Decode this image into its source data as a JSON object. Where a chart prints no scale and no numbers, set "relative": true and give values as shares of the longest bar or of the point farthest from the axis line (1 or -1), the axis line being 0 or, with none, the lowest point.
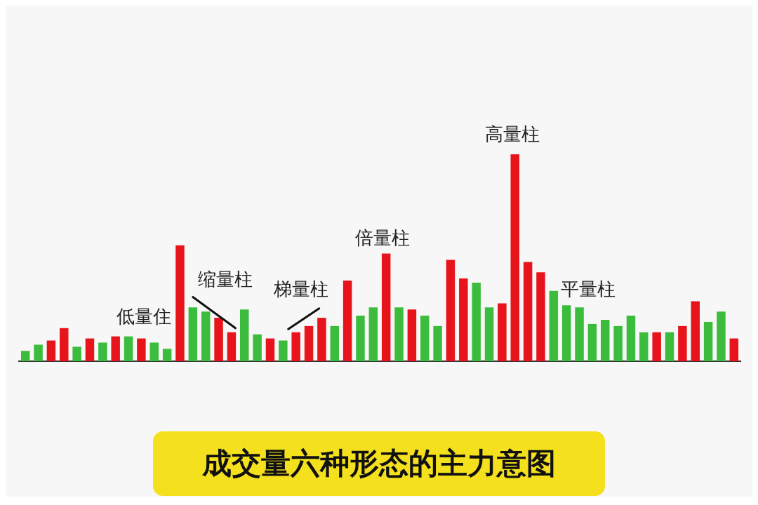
{
  "chart_data": {
    "type": "bar",
    "relative": true,
    "title": "成交量六种形态的主力意图",
    "categories": [
      null,
      null,
      null,
      null,
      null,
      null,
      null,
      null,
      null,
      null,
      null,
      null,
      null,
      null,
      null,
      null,
      null,
      null,
      null,
      null,
      null,
      null,
      null,
      null,
      null,
      null,
      null,
      null,
      null,
      null,
      null,
      null,
      null,
      null,
      null,
      null,
      null,
      null,
      null,
      null,
      null,
      null,
      null,
      null,
      null,
      null,
      null,
      null,
      null,
      null,
      null,
      null,
      null,
      null,
      null,
      null
    ],
    "values": [
      0.05,
      0.08,
      0.1,
      0.16,
      0.07,
      0.11,
      0.09,
      0.12,
      0.12,
      0.11,
      0.09,
      0.06,
      0.56,
      0.26,
      0.24,
      0.21,
      0.14,
      0.25,
      0.13,
      0.11,
      0.1,
      0.14,
      0.17,
      0.21,
      0.17,
      0.39,
      0.22,
      0.26,
      0.52,
      0.26,
      0.25,
      0.22,
      0.17,
      0.49,
      0.4,
      0.38,
      0.26,
      0.28,
      1,
      0.48,
      0.43,
      0.34,
      0.27,
      0.26,
      0.18,
      0.2,
      0.17,
      0.22,
      0.14,
      0.14,
      0.14,
      0.17,
      0.29,
      0.19,
      0.24,
      0.11
    ],
    "colors": [
      "#3cbc3c",
      "#3cbc3c",
      "#e8141c",
      "#e8141c",
      "#3cbc3c",
      "#e8141c",
      "#3cbc3c",
      "#e8141c",
      "#3cbc3c",
      "#e8141c",
      "#3cbc3c",
      "#3cbc3c",
      "#e8141c",
      "#3cbc3c",
      "#3cbc3c",
      "#e8141c",
      "#e8141c",
      "#3cbc3c",
      "#3cbc3c",
      "#e8141c",
      "#3cbc3c",
      "#e8141c",
      "#e8141c",
      "#e8141c",
      "#3cbc3c",
      "#e8141c",
      "#3cbc3c",
      "#3cbc3c",
      "#e8141c",
      "#3cbc3c",
      "#e8141c",
      "#3cbc3c",
      "#3cbc3c",
      "#e8141c",
      "#e8141c",
      "#3cbc3c",
      "#3cbc3c",
      "#e8141c",
      "#e8141c",
      "#e8141c",
      "#e8141c",
      "#3cbc3c",
      "#3cbc3c",
      "#3cbc3c",
      "#3cbc3c",
      "#3cbc3c",
      "#3cbc3c",
      "#3cbc3c",
      "#3cbc3c",
      "#e8141c",
      "#3cbc3c",
      "#e8141c",
      "#e8141c",
      "#3cbc3c",
      "#3cbc3c",
      "#e8141c"
    ],
    "annotations": [
      "低量住",
      "缩量柱",
      "梯量柱",
      "倍量柱",
      "高量柱",
      "平量柱"
    ],
    "grid": false,
    "legend": false
  }
}
